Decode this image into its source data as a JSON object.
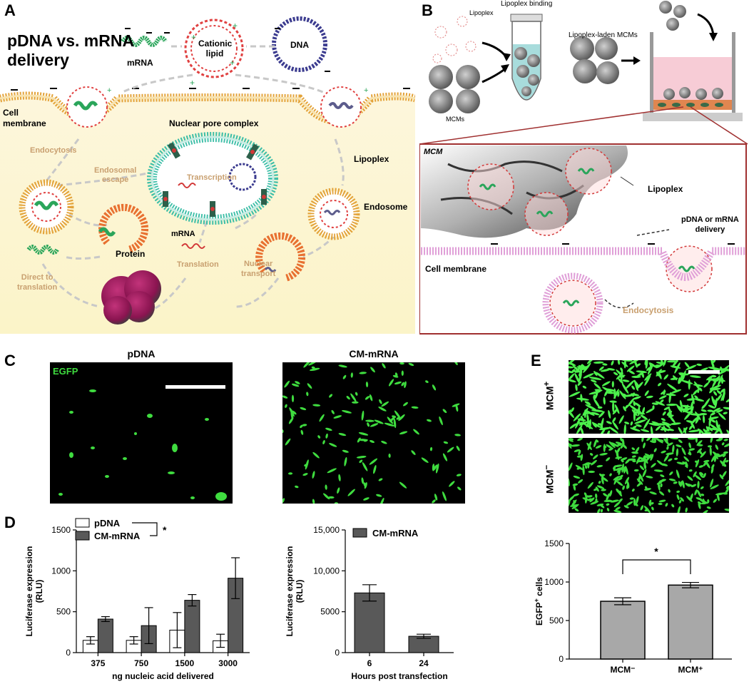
{
  "panels": {
    "A": "A",
    "B": "B",
    "C": "C",
    "D": "D",
    "E": "E"
  },
  "panelA": {
    "title_line1": "pDNA vs. mRNA",
    "title_line2": "delivery",
    "mrna_top": "mRNA",
    "cationic_lipid_1": "Cationic",
    "cationic_lipid_2": "lipid",
    "dna": "DNA",
    "cell_membrane_1": "Cell",
    "cell_membrane_2": "membrane",
    "endocytosis": "Endocytosis",
    "endosomal_escape_1": "Endosomal",
    "endosomal_escape_2": "escape",
    "nuclear_pore": "Nuclear pore complex",
    "transcription": "Transcription",
    "lipoplex": "Lipoplex",
    "endosome": "Endosome",
    "mrna_mid": "mRNA",
    "translation": "Translation",
    "protein": "Protein",
    "direct_1": "Direct to",
    "direct_2": "translation",
    "nuclear_transport_1": "Nuclear",
    "nuclear_transport_2": "transport"
  },
  "panelB": {
    "lipoplex": "Lipoplex",
    "lipoplex_binding": "Lipoplex binding",
    "laden": "Lipoplex-laden MCMs",
    "mcms": "MCMs",
    "mcm_label": "MCM",
    "lipoplex2": "Lipoplex",
    "delivery_1": "pDNA or mRNA",
    "delivery_2": "delivery",
    "cell_membrane": "Cell membrane",
    "endocytosis": "Endocytosis"
  },
  "panelC": {
    "title_left": "pDNA",
    "title_right": "CM-mRNA",
    "egfp": "EGFP"
  },
  "panelE": {
    "mcm_plus": "MCM",
    "mcm_plus_sup": "+",
    "mcm_minus": "MCM",
    "mcm_minus_sup": "−"
  },
  "chart_data": [
    {
      "id": "D-left",
      "type": "bar",
      "title": "",
      "xlabel": "ng nucleic acid delivered",
      "ylabel_1": "Luciferase expression",
      "ylabel_2": "(RLU)",
      "ylim": [
        0,
        1500
      ],
      "yticks": [
        "0",
        "500",
        "1000",
        "1500"
      ],
      "categories": [
        "375",
        "750",
        "1500",
        "3000"
      ],
      "series": [
        {
          "name": "pDNA",
          "color": "#ffffff",
          "values": [
            150,
            150,
            275,
            145
          ],
          "errors": [
            45,
            45,
            215,
            80
          ]
        },
        {
          "name": "CM-mRNA",
          "color": "#595959",
          "values": [
            410,
            330,
            640,
            910
          ],
          "errors": [
            30,
            220,
            70,
            250
          ]
        }
      ],
      "significance": "*"
    },
    {
      "id": "D-right",
      "type": "bar",
      "title": "",
      "xlabel": "Hours post transfection",
      "ylabel_1": "Luciferase expression",
      "ylabel_2": "(RLU)",
      "ylim": [
        0,
        15000
      ],
      "yticks": [
        "0",
        "5000",
        "10,000",
        "15,000"
      ],
      "categories": [
        "6",
        "24"
      ],
      "series": [
        {
          "name": "CM-mRNA",
          "color": "#595959",
          "values": [
            7300,
            2000
          ],
          "errors": [
            1000,
            250
          ]
        }
      ]
    },
    {
      "id": "E-bottom",
      "type": "bar",
      "title": "",
      "xlabel": "",
      "ylabel_1": "EGFP",
      "ylabel_sup": "+",
      "ylabel_2": " cells",
      "ylim": [
        0,
        1500
      ],
      "yticks": [
        "0",
        "500",
        "1000",
        "1500"
      ],
      "categories": [
        "MCM⁻",
        "MCM⁺"
      ],
      "series": [
        {
          "name": "EGFP+ cells",
          "color": "#a8a8a8",
          "values": [
            750,
            960
          ],
          "errors": [
            45,
            35
          ]
        }
      ],
      "significance": "*"
    }
  ]
}
